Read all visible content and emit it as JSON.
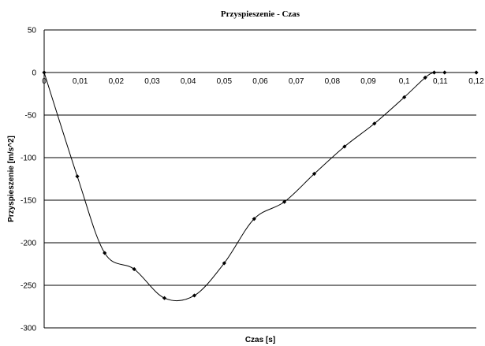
{
  "chart_data": {
    "type": "line",
    "title": "Przyspieszenie - Czas",
    "xlabel": "Czas [s]",
    "ylabel": "Przyspieszenie [m/s^2]",
    "xlim": [
      0,
      0.12
    ],
    "ylim": [
      -300,
      50
    ],
    "x_ticks": [
      0,
      0.01,
      0.02,
      0.03,
      0.04,
      0.05,
      0.06,
      0.07,
      0.08,
      0.09,
      0.1,
      0.11,
      0.12
    ],
    "x_tick_labels": [
      "0",
      "0,01",
      "0,02",
      "0,03",
      "0,04",
      "0,05",
      "0,06",
      "0,07",
      "0,08",
      "0,09",
      "0,1",
      "0,11",
      "0,12"
    ],
    "y_ticks": [
      50,
      0,
      -50,
      -100,
      -150,
      -200,
      -250,
      -300
    ],
    "y_tick_labels": [
      "50",
      "0",
      "-50",
      "-100",
      "-150",
      "-200",
      "-250",
      "-300"
    ],
    "grid": "horizontal",
    "smooth": true,
    "series": [
      {
        "color": "#000000",
        "marker": "diamond",
        "x": [
          0,
          0.0092,
          0.0168,
          0.025,
          0.0334,
          0.0417,
          0.05,
          0.0583,
          0.0667,
          0.075,
          0.0834,
          0.0917,
          0.1,
          0.1058,
          0.1083,
          0.1112,
          0.12
        ],
        "y": [
          0,
          -122,
          -212,
          -231,
          -265,
          -262,
          -224,
          -172,
          -152,
          -119,
          -87,
          -60,
          -29,
          -6,
          0,
          0,
          0
        ]
      }
    ]
  }
}
